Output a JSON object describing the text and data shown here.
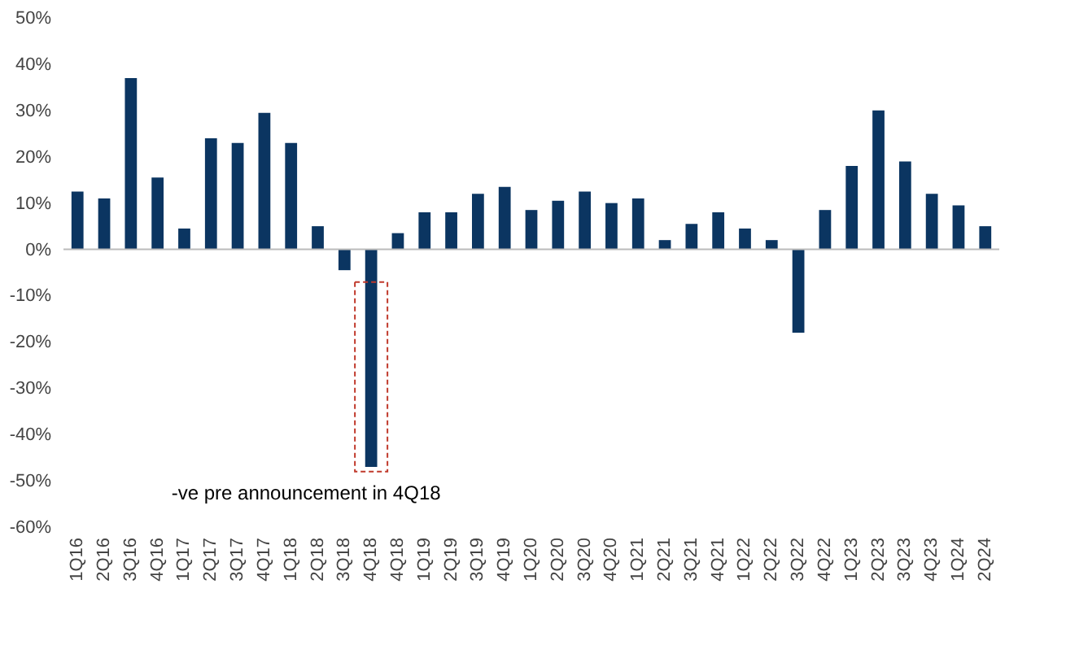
{
  "chart_data": {
    "type": "bar",
    "categories": [
      "1Q16",
      "2Q16",
      "3Q16",
      "4Q16",
      "1Q17",
      "2Q17",
      "3Q17",
      "4Q17",
      "1Q18",
      "2Q18",
      "3Q18",
      "4Q18",
      "4Q18",
      "1Q19",
      "2Q19",
      "3Q19",
      "4Q19",
      "1Q20",
      "2Q20",
      "3Q20",
      "4Q20",
      "1Q21",
      "2Q21",
      "3Q21",
      "4Q21",
      "1Q22",
      "2Q22",
      "3Q22",
      "4Q22",
      "1Q23",
      "2Q23",
      "3Q23",
      "4Q23",
      "1Q24",
      "2Q24"
    ],
    "values": [
      12.5,
      11,
      37,
      15.5,
      4.5,
      24,
      23,
      29.5,
      23,
      5,
      -4.5,
      -47,
      3.5,
      8,
      8,
      12,
      13.5,
      8.5,
      10.5,
      12.5,
      10,
      11,
      2,
      5.5,
      8,
      4.5,
      2,
      -18,
      8.5,
      18,
      30,
      19,
      12,
      9.5,
      5
    ],
    "color": "#0b3561",
    "ylim": [
      -60,
      50
    ],
    "yticks": [
      {
        "value": -60,
        "label": "-60%"
      },
      {
        "value": -50,
        "label": "-50%"
      },
      {
        "value": -40,
        "label": "-40%"
      },
      {
        "value": -30,
        "label": "-30%"
      },
      {
        "value": -20,
        "label": "-20%"
      },
      {
        "value": -10,
        "label": "-10%"
      },
      {
        "value": 0,
        "label": "0%"
      },
      {
        "value": 10,
        "label": "10%"
      },
      {
        "value": 20,
        "label": "20%"
      },
      {
        "value": 30,
        "label": "30%"
      },
      {
        "value": 40,
        "label": "40%"
      },
      {
        "value": 50,
        "label": "50%"
      }
    ],
    "grid": false,
    "ref_lines": [
      {
        "axis": "y",
        "value": 0,
        "color": "#bbbbbb"
      }
    ],
    "annotations": [
      {
        "text": "-ve pre announcement in 4Q18",
        "x": "4Q18",
        "y": -47
      }
    ]
  }
}
